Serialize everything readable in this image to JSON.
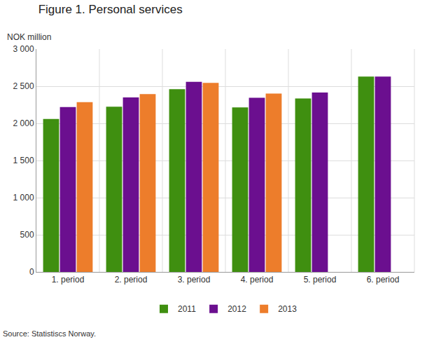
{
  "chart_data": {
    "type": "bar",
    "title": "Figure 1. Personal services",
    "y_label": "NOK million",
    "source": "Source: Statistiscs Norway.",
    "categories": [
      "1. period",
      "2. period",
      "3. period",
      "4. period",
      "5. period",
      "6. period"
    ],
    "series": [
      {
        "name": "2011",
        "color": "#3f8f10",
        "values": [
          2060,
          2225,
          2460,
          2215,
          2335,
          2630
        ]
      },
      {
        "name": "2012",
        "color": "#6b0f8f",
        "values": [
          2220,
          2350,
          2560,
          2345,
          2415,
          2630
        ]
      },
      {
        "name": "2013",
        "color": "#ed7d2b",
        "values": [
          2285,
          2395,
          2545,
          2400,
          null,
          null
        ]
      }
    ],
    "ylim": [
      0,
      3000
    ],
    "yticks": [
      0,
      500,
      {
        "value": 1000,
        "label": "1 000"
      },
      {
        "value": 1500,
        "label": "1 500"
      },
      {
        "value": 2000,
        "label": "2 000"
      },
      {
        "value": 2500,
        "label": "2 500"
      },
      {
        "value": 3000,
        "label": "3 000"
      }
    ],
    "grid": true,
    "legend": "bottom"
  }
}
